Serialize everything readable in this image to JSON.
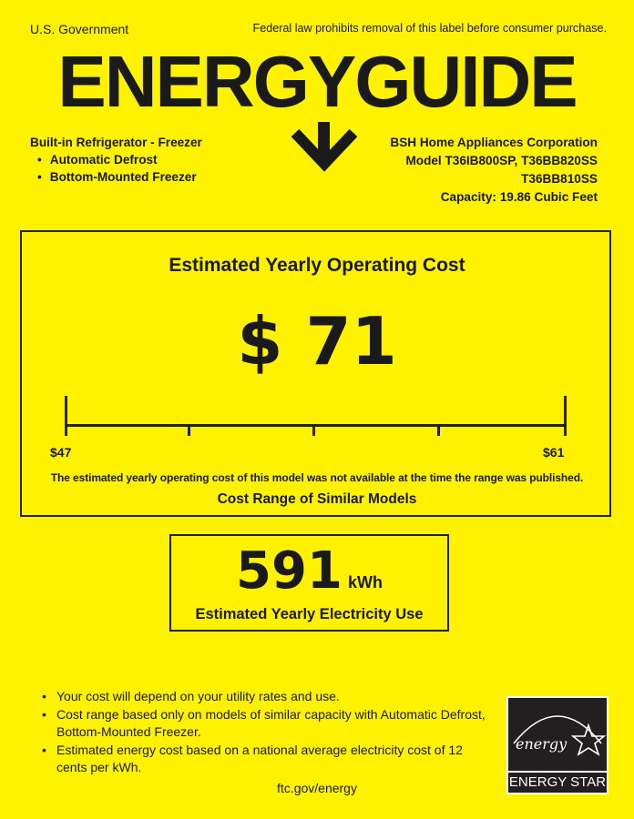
{
  "header": {
    "government": "U.S. Government",
    "notice": "Federal law prohibits removal of this label before consumer purchase.",
    "title": "ENERGYGUIDE"
  },
  "product": {
    "type": "Built-in Refrigerator - Freezer",
    "features": [
      "Automatic Defrost",
      "Bottom-Mounted Freezer"
    ]
  },
  "manufacturer": {
    "name": "BSH Home Appliances Corporation",
    "model_line1": "Model T36IB800SP, T36BB820SS",
    "model_line2": "T36BB810SS",
    "capacity": "Capacity: 19.86 Cubic Feet"
  },
  "cost": {
    "title": "Estimated Yearly Operating Cost",
    "value": "$ 71",
    "range_low": "$47",
    "range_high": "$61",
    "note": "The estimated yearly operating cost of this model was not available at the time the range was published.",
    "range_label": "Cost Range of Similar Models"
  },
  "electricity": {
    "value": "591",
    "unit": "kWh",
    "label": "Estimated Yearly Electricity Use"
  },
  "bullets": [
    "Your cost will depend on your utility rates and use.",
    "Cost range based only on models of similar capacity with Automatic Defrost, Bottom-Mounted Freezer.",
    "Estimated energy cost based on a national average electricity cost of 12 cents per kWh."
  ],
  "footer": {
    "link": "ftc.gov/energy"
  },
  "logo": {
    "script": "energy",
    "label": "ENERGY STAR"
  },
  "colors": {
    "background": "#fff200",
    "ink": "#1a1a1a"
  }
}
